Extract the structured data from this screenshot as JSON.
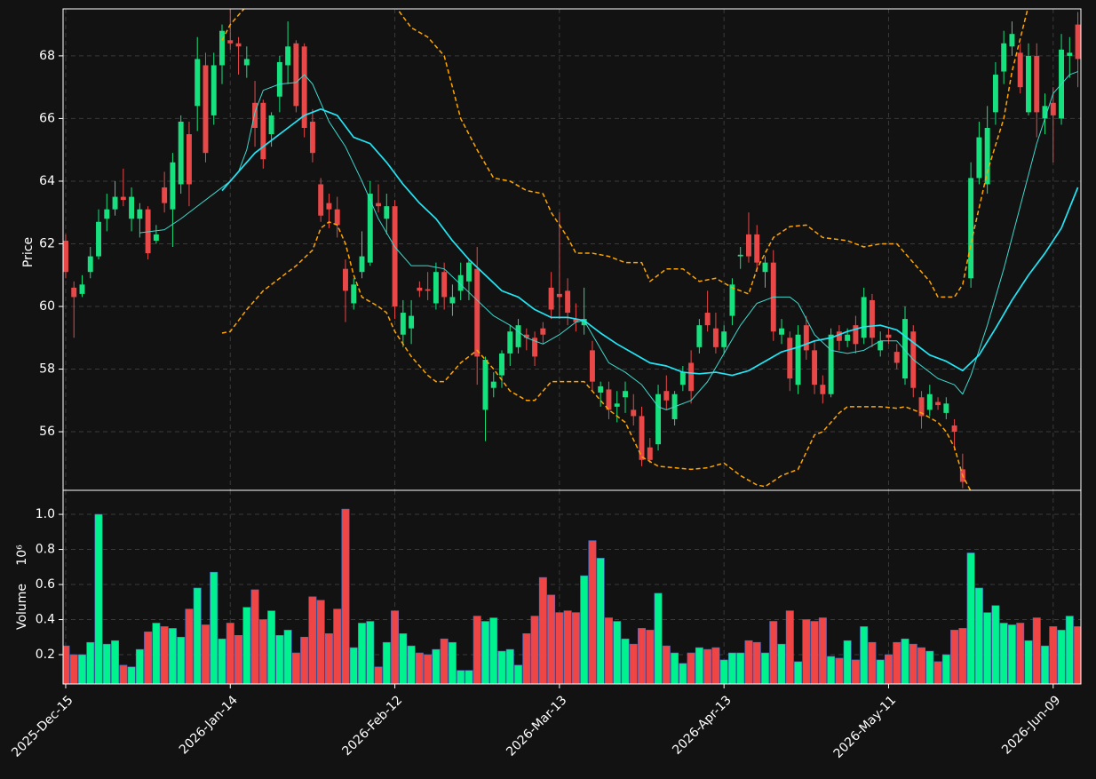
{
  "chart_data": [
    {
      "type": "candlestick",
      "ylabel": "Price",
      "up_color": "#17e07e",
      "down_color": "#e94848",
      "ylim": [
        54.13,
        69.5
      ],
      "yticks": [
        56,
        58,
        60,
        62,
        64,
        66,
        68
      ],
      "grid": true,
      "open": [
        62.1,
        60.6,
        60.4,
        61.1,
        61.6,
        62.8,
        63.1,
        63.5,
        62.8,
        62.8,
        63.1,
        62.1,
        63.8,
        63.1,
        63.9,
        65.5,
        66.4,
        67.7,
        66.1,
        67.7,
        68.5,
        68.4,
        67.7,
        66.5,
        66.5,
        65.5,
        66.7,
        67.7,
        68.4,
        68.3,
        65.9,
        63.9,
        63.3,
        63.1,
        61.2,
        60.1,
        61.1,
        61.4,
        63.3,
        62.8,
        63.2,
        59.1,
        59.3,
        60.6,
        60.55,
        60.1,
        61.1,
        60.1,
        60.5,
        60.8,
        61.2,
        56.7,
        57.4,
        57.8,
        58.5,
        58.7,
        59.1,
        59.0,
        59.3,
        60.6,
        60.4,
        60.5,
        59.6,
        59.4,
        58.6,
        57.25,
        57.35,
        56.8,
        57.1,
        56.7,
        56.5,
        55.5,
        55.6,
        57.3,
        56.4,
        57.5,
        58.2,
        58.7,
        59.8,
        59.3,
        58.7,
        59.7,
        61.6,
        62.3,
        62.3,
        61.1,
        61.4,
        59.1,
        59.0,
        57.5,
        59.4,
        58.6,
        57.5,
        57.2,
        59.2,
        58.9,
        59.4,
        59.0,
        60.2,
        58.6,
        59.1,
        58.55,
        57.7,
        59.2,
        57.1,
        56.7,
        56.95,
        56.6,
        56.2,
        54.8,
        60.9,
        64.1,
        63.9,
        66.2,
        67.5,
        68.3,
        68.1,
        66.2,
        68.0,
        66.0,
        66.5,
        66.0,
        68.0,
        69.0
      ],
      "high": [
        62.3,
        60.8,
        61.0,
        61.9,
        63.1,
        63.6,
        64.0,
        64.4,
        63.8,
        63.3,
        63.2,
        62.6,
        64.3,
        64.9,
        66.1,
        65.9,
        68.6,
        68.1,
        68.1,
        69.0,
        69.5,
        68.6,
        68.3,
        67.2,
        66.6,
        66.2,
        68.0,
        69.1,
        68.5,
        68.4,
        66.3,
        64.1,
        63.6,
        63.5,
        61.5,
        60.9,
        62.4,
        64.0,
        63.9,
        63.6,
        63.4,
        60.2,
        60.2,
        60.8,
        61.1,
        61.4,
        61.4,
        60.7,
        61.4,
        61.5,
        61.9,
        58.4,
        57.9,
        58.6,
        59.4,
        59.6,
        59.3,
        59.2,
        59.5,
        61.1,
        63.0,
        60.9,
        60.1,
        60.6,
        58.9,
        57.6,
        57.6,
        57.3,
        57.6,
        57.2,
        56.8,
        55.8,
        57.5,
        57.8,
        57.3,
        58.1,
        58.6,
        59.6,
        60.5,
        59.8,
        59.4,
        60.9,
        61.9,
        63.0,
        62.6,
        61.6,
        61.8,
        59.6,
        59.2,
        59.4,
        59.7,
        58.9,
        57.8,
        59.3,
        59.4,
        59.3,
        59.7,
        60.6,
        60.4,
        59.2,
        59.3,
        58.8,
        60.0,
        59.4,
        57.3,
        57.5,
        57.1,
        57.1,
        56.4,
        55.3,
        64.6,
        65.9,
        66.4,
        67.8,
        68.8,
        69.1,
        68.4,
        68.4,
        68.4,
        66.8,
        67.0,
        68.7,
        68.6,
        69.4
      ],
      "low": [
        60.9,
        59.0,
        60.3,
        60.9,
        61.5,
        62.4,
        62.9,
        63.2,
        62.4,
        62.2,
        61.5,
        62.0,
        63.0,
        61.9,
        63.6,
        63.2,
        65.6,
        64.6,
        65.8,
        67.1,
        68.2,
        67.4,
        67.3,
        65.1,
        64.4,
        65.1,
        66.2,
        67.1,
        66.2,
        65.4,
        64.6,
        62.7,
        62.5,
        62.2,
        59.5,
        59.9,
        60.9,
        61.3,
        63.0,
        62.3,
        59.6,
        58.7,
        58.8,
        60.3,
        60.2,
        59.9,
        59.9,
        59.7,
        60.2,
        60.2,
        57.5,
        55.7,
        57.1,
        57.4,
        58.1,
        58.5,
        58.6,
        58.1,
        58.8,
        59.6,
        59.6,
        59.4,
        59.2,
        59.1,
        57.3,
        56.8,
        56.4,
        56.3,
        56.6,
        56.2,
        54.9,
        55.0,
        55.4,
        56.7,
        56.2,
        57.3,
        56.9,
        58.5,
        59.2,
        58.5,
        58.5,
        59.4,
        61.2,
        61.4,
        61.1,
        60.6,
        58.9,
        58.8,
        57.3,
        57.2,
        58.3,
        57.2,
        56.9,
        57.1,
        58.6,
        58.7,
        58.5,
        58.8,
        58.7,
        58.4,
        58.8,
        58.0,
        57.5,
        57.1,
        56.1,
        56.5,
        56.7,
        56.4,
        55.4,
        54.2,
        60.6,
        63.9,
        63.6,
        65.8,
        67.1,
        68.0,
        66.8,
        66.1,
        65.4,
        65.5,
        64.6,
        65.8,
        67.3,
        67.0
      ],
      "close": [
        61.1,
        60.3,
        60.7,
        61.6,
        62.7,
        63.1,
        63.5,
        63.4,
        63.5,
        63.1,
        61.7,
        62.3,
        63.3,
        64.6,
        65.9,
        63.9,
        67.9,
        64.9,
        67.7,
        68.8,
        68.4,
        68.3,
        67.9,
        65.7,
        64.7,
        66.1,
        67.8,
        68.3,
        66.4,
        65.7,
        64.9,
        62.9,
        63.1,
        62.6,
        60.5,
        60.7,
        61.6,
        63.6,
        63.2,
        63.2,
        60.0,
        59.8,
        59.7,
        60.5,
        60.5,
        61.1,
        60.3,
        60.3,
        61.0,
        61.4,
        58.4,
        58.3,
        57.6,
        58.5,
        59.2,
        59.4,
        59.0,
        58.4,
        59.1,
        59.9,
        60.3,
        59.8,
        59.5,
        59.6,
        57.6,
        57.45,
        56.7,
        56.9,
        57.3,
        56.5,
        55.1,
        55.1,
        57.2,
        57.0,
        57.2,
        57.9,
        57.3,
        59.4,
        59.4,
        58.7,
        59.2,
        60.7,
        61.65,
        61.6,
        61.4,
        61.4,
        59.2,
        59.3,
        57.7,
        59.1,
        58.6,
        57.5,
        57.2,
        59.1,
        58.9,
        59.1,
        58.8,
        60.3,
        59.0,
        58.9,
        59.0,
        58.2,
        59.6,
        57.4,
        56.5,
        57.2,
        56.85,
        56.9,
        56.0,
        54.4,
        64.1,
        65.4,
        65.7,
        67.4,
        68.4,
        68.7,
        67.0,
        68.0,
        66.2,
        66.4,
        66.1,
        68.2,
        68.1,
        67.9
      ],
      "series": [
        {
          "color": "#3fd8cc",
          "x": [
            9,
            12,
            14,
            16,
            18,
            20,
            21,
            22,
            23,
            24,
            26,
            28,
            29,
            30,
            31,
            32,
            34,
            36,
            38,
            40,
            42,
            44,
            46,
            48,
            50,
            52,
            54,
            56,
            58,
            60,
            62,
            63,
            64,
            66,
            68,
            70,
            72,
            73,
            74,
            76,
            78,
            80,
            82,
            84,
            86,
            88,
            89,
            91,
            93,
            95,
            97,
            99,
            101,
            103,
            106,
            108,
            109,
            110,
            112,
            114,
            116,
            118,
            119,
            120,
            122,
            123
          ],
          "values": [
            62.35,
            62.45,
            62.8,
            63.2,
            63.6,
            64.0,
            64.3,
            65.0,
            66.2,
            66.9,
            67.1,
            67.15,
            67.4,
            67.1,
            66.5,
            65.9,
            65.1,
            64.0,
            62.8,
            61.9,
            61.3,
            61.3,
            61.2,
            60.7,
            60.2,
            59.7,
            59.4,
            59.0,
            58.8,
            59.1,
            59.5,
            59.55,
            59.1,
            58.2,
            57.9,
            57.5,
            56.8,
            56.7,
            56.8,
            57.0,
            57.6,
            58.5,
            59.4,
            60.1,
            60.3,
            60.3,
            60.1,
            59.1,
            58.6,
            58.5,
            58.6,
            58.9,
            58.9,
            58.3,
            57.7,
            57.5,
            57.2,
            57.8,
            59.4,
            61.2,
            63.2,
            65.2,
            66.0,
            66.8,
            67.4,
            67.5
          ]
        },
        {
          "color": "#22e6f5",
          "x": [
            19,
            21,
            23,
            25,
            27,
            29,
            31,
            33,
            35,
            37,
            39,
            41,
            43,
            45,
            47,
            49,
            51,
            53,
            55,
            57,
            59,
            61,
            63,
            65,
            67,
            69,
            71,
            73,
            75,
            77,
            79,
            81,
            83,
            85,
            87,
            89,
            91,
            93,
            95,
            97,
            99,
            101,
            103,
            105,
            107,
            109,
            111,
            113,
            115,
            117,
            119,
            121,
            123
          ],
          "values": [
            63.7,
            64.3,
            64.9,
            65.3,
            65.7,
            66.1,
            66.3,
            66.1,
            65.4,
            65.2,
            64.6,
            63.9,
            63.3,
            62.8,
            62.1,
            61.5,
            61.0,
            60.5,
            60.3,
            59.9,
            59.65,
            59.65,
            59.55,
            59.15,
            58.8,
            58.5,
            58.2,
            58.1,
            57.9,
            57.85,
            57.9,
            57.8,
            57.95,
            58.25,
            58.55,
            58.7,
            58.9,
            59.0,
            59.2,
            59.35,
            59.4,
            59.25,
            58.85,
            58.45,
            58.25,
            57.95,
            58.45,
            59.3,
            60.2,
            61.0,
            61.7,
            62.5,
            63.8
          ]
        },
        {
          "color": "#ffa500",
          "linestyle": "dashed",
          "x": [
            19,
            20,
            22,
            30,
            40,
            42,
            44,
            46,
            48,
            50,
            52,
            54,
            56,
            58,
            59,
            61,
            62,
            64,
            66,
            68,
            70,
            71,
            73,
            75,
            77,
            79,
            81,
            83,
            84,
            86,
            88,
            90,
            92,
            95,
            97,
            99,
            101,
            103,
            105,
            106,
            108,
            109,
            110,
            112,
            114,
            115,
            117
          ],
          "values": [
            68.5,
            69.0,
            69.6,
            null,
            69.6,
            68.9,
            68.6,
            68.0,
            66.0,
            65.0,
            64.1,
            64.0,
            63.7,
            63.6,
            63.0,
            62.2,
            61.7,
            61.7,
            61.6,
            61.4,
            61.4,
            60.8,
            61.2,
            61.2,
            60.8,
            60.9,
            60.6,
            60.4,
            61.2,
            62.2,
            62.55,
            62.6,
            62.2,
            62.1,
            61.9,
            62.0,
            62.0,
            61.4,
            60.8,
            60.3,
            60.3,
            60.7,
            62.0,
            64.3,
            66.0,
            67.5,
            69.6
          ]
        },
        {
          "color": "#ffa500",
          "linestyle": "dashed",
          "x": [
            19,
            20,
            22,
            24,
            26,
            28,
            30,
            31,
            32,
            33,
            34,
            35,
            36,
            38,
            39,
            40,
            42,
            44,
            45,
            46,
            48,
            50,
            52,
            54,
            56,
            57,
            59,
            61,
            63,
            64,
            66,
            68,
            70,
            72,
            74,
            76,
            78,
            80,
            82,
            84,
            85,
            87,
            89,
            91,
            92,
            94,
            95,
            99,
            101,
            102,
            104,
            106,
            107,
            108,
            109,
            110
          ],
          "values": [
            59.15,
            59.2,
            59.9,
            60.5,
            60.9,
            61.3,
            61.8,
            62.5,
            62.7,
            62.6,
            62.0,
            61.0,
            60.3,
            60.0,
            59.8,
            59.2,
            58.4,
            57.8,
            57.6,
            57.6,
            58.2,
            58.6,
            58.0,
            57.3,
            57.0,
            57.0,
            57.6,
            57.6,
            57.6,
            57.3,
            56.7,
            56.3,
            55.2,
            54.9,
            54.85,
            54.8,
            54.85,
            55.0,
            54.6,
            54.3,
            54.25,
            54.6,
            54.8,
            55.9,
            56.0,
            56.6,
            56.8,
            56.8,
            56.75,
            56.8,
            56.6,
            56.3,
            56.0,
            55.5,
            54.6,
            54.1
          ]
        }
      ]
    },
    {
      "type": "bar",
      "ylabel": "Volume",
      "offset_label": "10⁶",
      "edge_color": "#4a6fd0",
      "ylim": [
        0.033,
        1.137
      ],
      "yticks": [
        0.2,
        0.4,
        0.6,
        0.8,
        {
          "value": 1,
          "label": "1.0"
        }
      ],
      "grid": true,
      "xlim": [
        -0.32,
        123.37
      ],
      "categories": [
        "2025-Dec-15",
        null,
        null,
        null,
        null,
        null,
        null,
        null,
        null,
        null,
        null,
        null,
        null,
        null,
        null,
        null,
        null,
        null,
        null,
        null,
        "2026-Jan-14",
        null,
        null,
        null,
        null,
        null,
        null,
        null,
        null,
        null,
        null,
        null,
        null,
        null,
        null,
        null,
        null,
        null,
        null,
        null,
        "2026-Feb-12",
        null,
        null,
        null,
        null,
        null,
        null,
        null,
        null,
        null,
        null,
        null,
        null,
        null,
        null,
        null,
        null,
        null,
        null,
        null,
        "2026-Mar-13",
        null,
        null,
        null,
        null,
        null,
        null,
        null,
        null,
        null,
        null,
        null,
        null,
        null,
        null,
        null,
        null,
        null,
        null,
        null,
        "2026-Apr-13",
        null,
        null,
        null,
        null,
        null,
        null,
        null,
        null,
        null,
        null,
        null,
        null,
        null,
        null,
        null,
        null,
        null,
        null,
        null,
        "2026-May-11",
        null,
        null,
        null,
        null,
        null,
        null,
        null,
        null,
        null,
        null,
        null,
        null,
        null,
        null,
        null,
        null,
        null,
        null,
        null,
        "2026-Jun-09",
        null,
        null,
        null
      ],
      "up_color": "#00f28e",
      "down_color": "#f04545",
      "values": [
        0.25,
        0.2,
        0.2,
        0.27,
        1.0,
        0.26,
        0.28,
        0.14,
        0.13,
        0.23,
        0.33,
        0.38,
        0.36,
        0.35,
        0.3,
        0.46,
        0.58,
        0.37,
        0.67,
        0.29,
        0.38,
        0.31,
        0.47,
        0.57,
        0.4,
        0.45,
        0.31,
        0.34,
        0.21,
        0.3,
        0.53,
        0.51,
        0.32,
        0.46,
        1.03,
        0.24,
        0.38,
        0.39,
        0.13,
        0.27,
        0.45,
        0.32,
        0.25,
        0.21,
        0.2,
        0.23,
        0.29,
        0.27,
        0.11,
        0.11,
        0.42,
        0.39,
        0.41,
        0.22,
        0.23,
        0.14,
        0.32,
        0.42,
        0.64,
        0.54,
        0.44,
        0.45,
        0.44,
        0.65,
        0.85,
        0.75,
        0.41,
        0.39,
        0.29,
        0.26,
        0.35,
        0.34,
        0.55,
        0.25,
        0.21,
        0.15,
        0.21,
        0.24,
        0.23,
        0.24,
        0.17,
        0.21,
        0.21,
        0.28,
        0.27,
        0.21,
        0.39,
        0.26,
        0.45,
        0.16,
        0.4,
        0.39,
        0.41,
        0.19,
        0.18,
        0.28,
        0.17,
        0.36,
        0.27,
        0.17,
        0.2,
        0.27,
        0.29,
        0.26,
        0.24,
        0.22,
        0.16,
        0.2,
        0.34,
        0.35,
        0.78,
        0.58,
        0.44,
        0.48,
        0.38,
        0.37,
        0.38,
        0.28,
        0.41,
        0.25,
        0.36,
        0.34,
        0.42,
        0.36
      ]
    }
  ]
}
